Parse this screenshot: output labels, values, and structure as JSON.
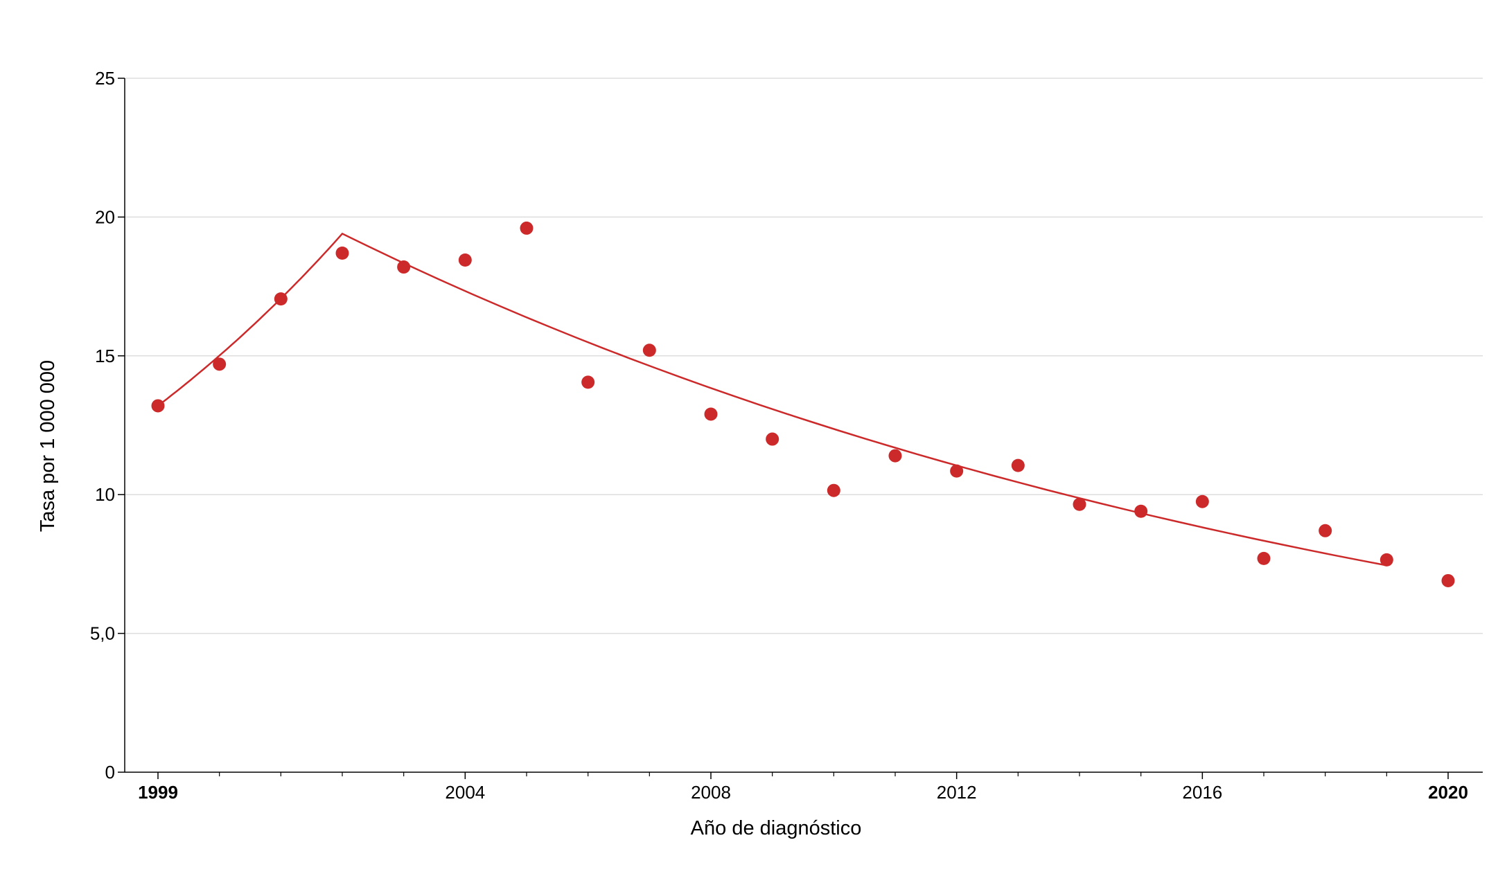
{
  "chart_data": {
    "type": "scatter",
    "xlabel": "Año de diagnóstico",
    "ylabel": "Tasa por 1 000 000",
    "xlim": [
      1999,
      2020
    ],
    "ylim": [
      0,
      25
    ],
    "y_ticks": [
      {
        "value": 0,
        "label": "0"
      },
      {
        "value": 5,
        "label": "5,0"
      },
      {
        "value": 10,
        "label": "10"
      },
      {
        "value": 15,
        "label": "15"
      },
      {
        "value": 20,
        "label": "20"
      },
      {
        "value": 25,
        "label": "25"
      }
    ],
    "x_ticks": [
      {
        "value": 1999,
        "label": "1999",
        "bold": true
      },
      {
        "value": 2004,
        "label": "2004",
        "bold": false
      },
      {
        "value": 2008,
        "label": "2008",
        "bold": false
      },
      {
        "value": 2012,
        "label": "2012",
        "bold": false
      },
      {
        "value": 2016,
        "label": "2016",
        "bold": false
      },
      {
        "value": 2020,
        "label": "2020",
        "bold": true
      }
    ],
    "x_minor_ticks": [
      2000,
      2001,
      2002,
      2003,
      2005,
      2006,
      2007,
      2009,
      2010,
      2011,
      2013,
      2014,
      2015,
      2017,
      2018,
      2019
    ],
    "grid": "horizontal",
    "colors": {
      "points": "#cc2a2a",
      "trend": "#cc2a2a",
      "grid": "#dddddd",
      "axis": "#000000"
    },
    "series": [
      {
        "kind": "points",
        "x": [
          1999,
          2000,
          2001,
          2002,
          2003,
          2004,
          2005,
          2006,
          2007,
          2008,
          2009,
          2010,
          2011,
          2012,
          2013,
          2014,
          2015,
          2016,
          2017,
          2018,
          2019,
          2020
        ],
        "y": [
          13.2,
          14.7,
          17.05,
          18.7,
          18.2,
          18.45,
          19.6,
          14.05,
          15.2,
          12.9,
          12.0,
          10.15,
          11.4,
          10.85,
          11.05,
          9.65,
          9.4,
          9.75,
          7.7,
          8.7,
          7.65,
          6.9
        ]
      },
      {
        "kind": "trend",
        "x": [
          1999,
          2002,
          2019
        ],
        "y": [
          13.2,
          19.4,
          7.45
        ]
      }
    ]
  }
}
